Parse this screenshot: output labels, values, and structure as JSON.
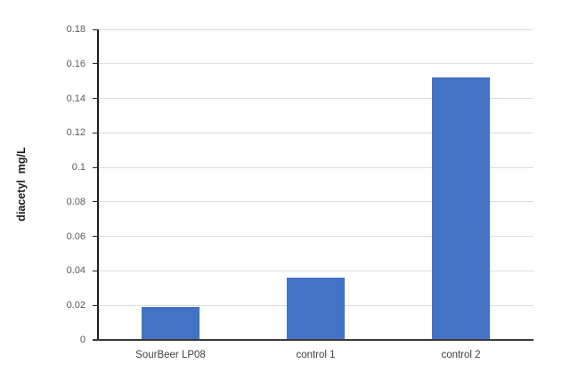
{
  "chart_data": {
    "type": "bar",
    "title": "",
    "xlabel": "",
    "ylabel": "diacetyl  mg/L",
    "categories": [
      "SourBeer LP08",
      "control 1",
      "control 2"
    ],
    "values": [
      0.019,
      0.036,
      0.152
    ],
    "ylim": [
      0,
      0.18
    ],
    "yticks": [
      0,
      0.02,
      0.04,
      0.06,
      0.08,
      0.1,
      0.12,
      0.14,
      0.16,
      0.18
    ],
    "ytick_labels": [
      "0",
      "0.02",
      "0.04",
      "0.06",
      "0.08",
      "0.1",
      "0.12",
      "0.14",
      "0.16",
      "0.18"
    ],
    "grid": true,
    "legend": "none",
    "colors": {
      "bar": "#4472C4",
      "gridline": "#DBDBDB",
      "y_axis_line": "#1f1f1f",
      "x_axis_line": "#3a3a3a",
      "tick_label": "#595959",
      "category_label": "#404040",
      "axis_title": "#1a1a1a",
      "background": "#ffffff"
    }
  }
}
